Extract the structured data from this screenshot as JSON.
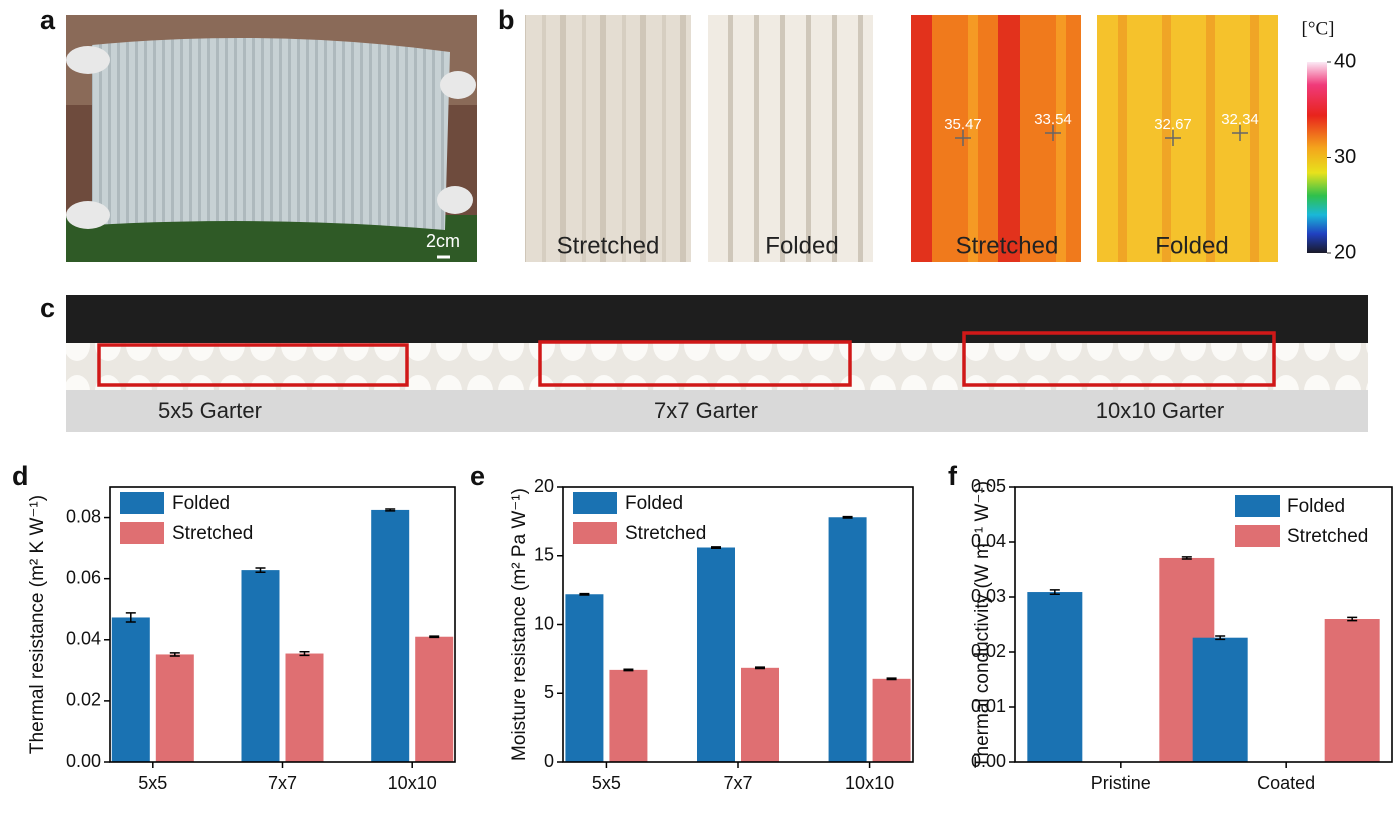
{
  "panels": {
    "a": {
      "label": "a",
      "scale_bar": "2cm"
    },
    "b": {
      "label": "b",
      "photos": [
        "Stretched",
        "Folded"
      ],
      "thermal": [
        {
          "caption": "Stretched",
          "readings": [
            35.47,
            33.54
          ]
        },
        {
          "caption": "Folded",
          "readings": [
            32.67,
            32.34
          ]
        }
      ],
      "colorbar": {
        "unit": "[°C]",
        "lim": [
          20,
          40
        ],
        "ticks": [
          20,
          30,
          40
        ]
      }
    },
    "c": {
      "label": "c",
      "regions": [
        "5x5 Garter",
        "7x7 Garter",
        "10x10 Garter"
      ]
    }
  },
  "chart_data": [
    {
      "type": "bar",
      "panel_label": "d",
      "y_label": "Thermal resistance (m² K W⁻¹)",
      "categories": [
        "5x5",
        "7x7",
        "10x10"
      ],
      "series": [
        {
          "name": "Folded",
          "color": "#1a72b2",
          "values": [
            0.0473,
            0.0628,
            0.0825
          ],
          "errors": [
            0.0015,
            0.0007,
            0.0003
          ]
        },
        {
          "name": "Stretched",
          "color": "#df6f72",
          "values": [
            0.0352,
            0.0355,
            0.041
          ],
          "errors": [
            0.0005,
            0.0006,
            0.0002
          ]
        }
      ],
      "ylim": [
        0,
        0.09
      ],
      "yticks": [
        {
          "value": 0,
          "label": "0.00"
        },
        0.02,
        0.04,
        0.06,
        0.08
      ],
      "legend": "upper left"
    },
    {
      "type": "bar",
      "panel_label": "e",
      "y_label": "Moisture resistance (m² Pa W⁻¹)",
      "categories": [
        "5x5",
        "7x7",
        "10x10"
      ],
      "series": [
        {
          "name": "Folded",
          "color": "#1a72b2",
          "values": [
            12.2,
            15.6,
            17.8
          ],
          "errors": [
            0.05,
            0.05,
            0.05
          ]
        },
        {
          "name": "Stretched",
          "color": "#df6f72",
          "values": [
            6.7,
            6.85,
            6.05
          ],
          "errors": [
            0.05,
            0.05,
            0.05
          ]
        }
      ],
      "ylim": [
        0,
        20
      ],
      "yticks": [
        0,
        5,
        10,
        15,
        20
      ],
      "legend": "upper left"
    },
    {
      "type": "bar",
      "panel_label": "f",
      "y_label": "Thermal conductivity (W m⁻¹ W⁻¹)",
      "categories": [
        "Pristine",
        "Coated"
      ],
      "series": [
        {
          "name": "Folded",
          "color": "#1a72b2",
          "values": [
            0.0309,
            0.0226
          ],
          "errors": [
            0.0004,
            0.0003
          ]
        },
        {
          "name": "Stretched",
          "color": "#df6f72",
          "values": [
            0.0371,
            0.026
          ],
          "errors": [
            0.0002,
            0.0003
          ]
        }
      ],
      "ylim": [
        0,
        0.05
      ],
      "yticks": [
        {
          "value": 0,
          "label": "0.00"
        },
        0.01,
        0.02,
        0.03,
        0.04,
        0.05
      ],
      "legend": "upper right"
    }
  ]
}
